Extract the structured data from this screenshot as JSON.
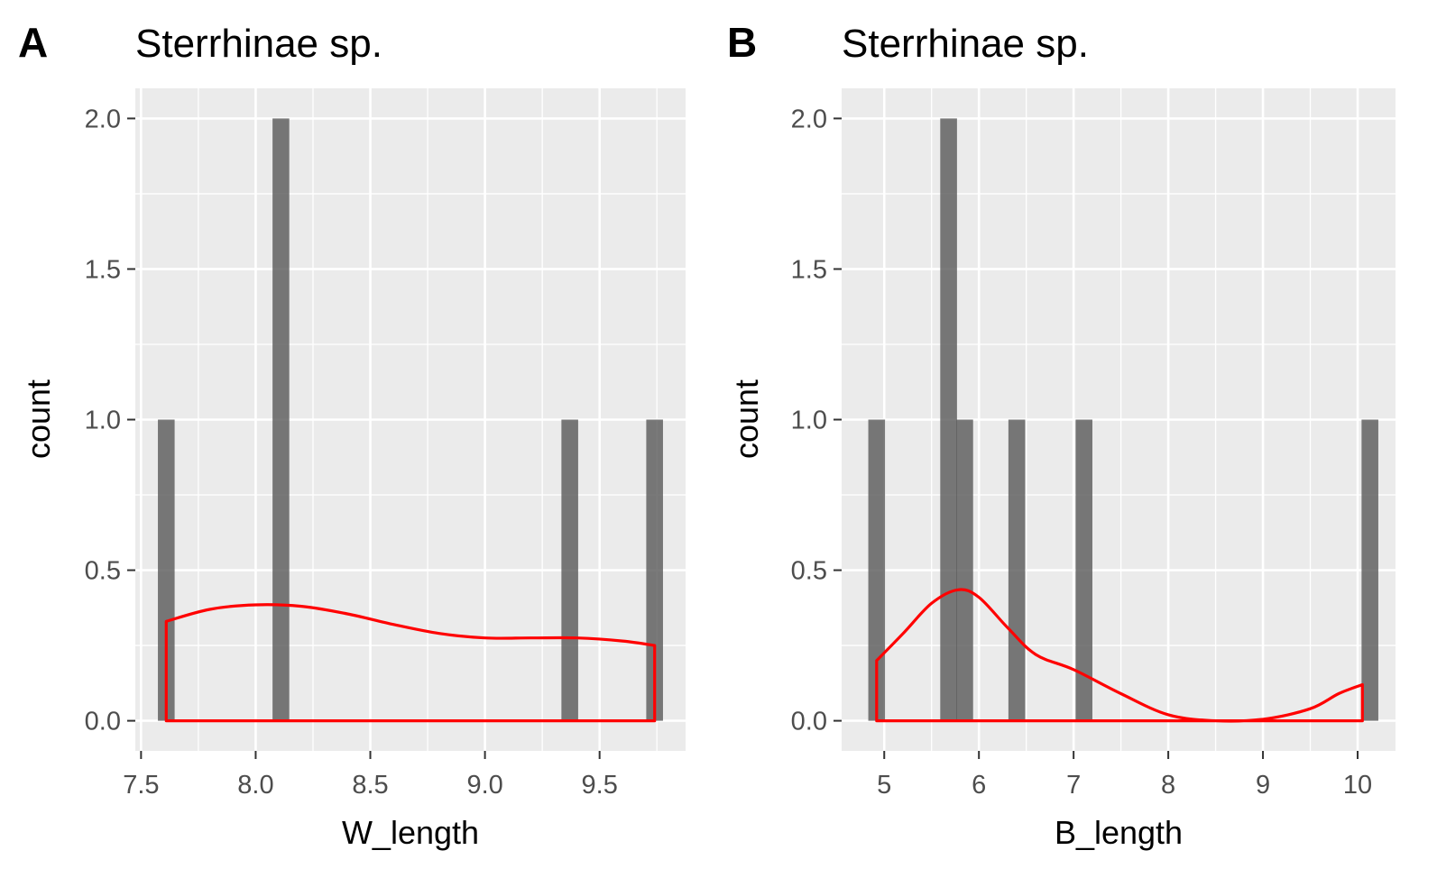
{
  "colors": {
    "panel_background": "#ebebeb",
    "grid_major": "#ffffff",
    "bar_fill": "#595959",
    "bar_opacity": 0.8,
    "density_line": "#ff0000",
    "tick_text": "#4d4d4d",
    "tick_mark": "#333333"
  },
  "chart_data": [
    {
      "type": "bar",
      "tag": "A",
      "title": "Sterrhinae sp.",
      "xlabel": "W_length",
      "ylabel": "count",
      "grid": true,
      "legend": "none",
      "xlim": [
        7.475,
        9.875
      ],
      "ylim": [
        -0.1,
        2.1
      ],
      "x_ticks": [
        7.5,
        8.0,
        8.5,
        9.0,
        9.5
      ],
      "x_tick_labels": [
        "7.5",
        "8.0",
        "8.5",
        "9.0",
        "9.5"
      ],
      "y_ticks": [
        0,
        0.5,
        1.0,
        1.5,
        2.0
      ],
      "y_tick_labels": [
        "0.0",
        "0.5",
        "1.0",
        "1.5",
        "2.0"
      ],
      "bin_width": 0.073,
      "bins": [
        {
          "x": 7.61,
          "count": 1
        },
        {
          "x": 8.11,
          "count": 2
        },
        {
          "x": 9.37,
          "count": 1
        },
        {
          "x": 9.74,
          "count": 1
        }
      ],
      "density_series": {
        "x": [
          7.61,
          7.8,
          8.0,
          8.2,
          8.4,
          8.6,
          8.8,
          9.0,
          9.2,
          9.4,
          9.6,
          9.74
        ],
        "y": [
          0.33,
          0.37,
          0.385,
          0.38,
          0.355,
          0.32,
          0.29,
          0.275,
          0.275,
          0.275,
          0.265,
          0.25
        ]
      }
    },
    {
      "type": "bar",
      "tag": "B",
      "title": "Sterrhinae sp.",
      "xlabel": "B_length",
      "ylabel": "count",
      "grid": true,
      "legend": "none",
      "xlim": [
        4.55,
        10.4
      ],
      "ylim": [
        -0.1,
        2.1
      ],
      "x_ticks": [
        5,
        6,
        7,
        8,
        9,
        10
      ],
      "x_tick_labels": [
        "5",
        "6",
        "7",
        "8",
        "9",
        "10"
      ],
      "y_ticks": [
        0,
        0.5,
        1.0,
        1.5,
        2.0
      ],
      "y_tick_labels": [
        "0.0",
        "0.5",
        "1.0",
        "1.5",
        "2.0"
      ],
      "bin_width": 0.177,
      "bins": [
        {
          "x": 4.92,
          "count": 1
        },
        {
          "x": 5.68,
          "count": 2
        },
        {
          "x": 5.85,
          "count": 1
        },
        {
          "x": 6.4,
          "count": 1
        },
        {
          "x": 7.11,
          "count": 1
        },
        {
          "x": 10.13,
          "count": 1
        }
      ],
      "density_series": {
        "x": [
          4.92,
          5.2,
          5.5,
          5.78,
          6.0,
          6.3,
          6.6,
          7.0,
          7.5,
          8.0,
          8.5,
          9.0,
          9.5,
          9.8,
          10.05
        ],
        "y": [
          0.2,
          0.29,
          0.39,
          0.435,
          0.41,
          0.31,
          0.22,
          0.17,
          0.09,
          0.02,
          0.0,
          0.005,
          0.04,
          0.09,
          0.12
        ]
      }
    }
  ]
}
